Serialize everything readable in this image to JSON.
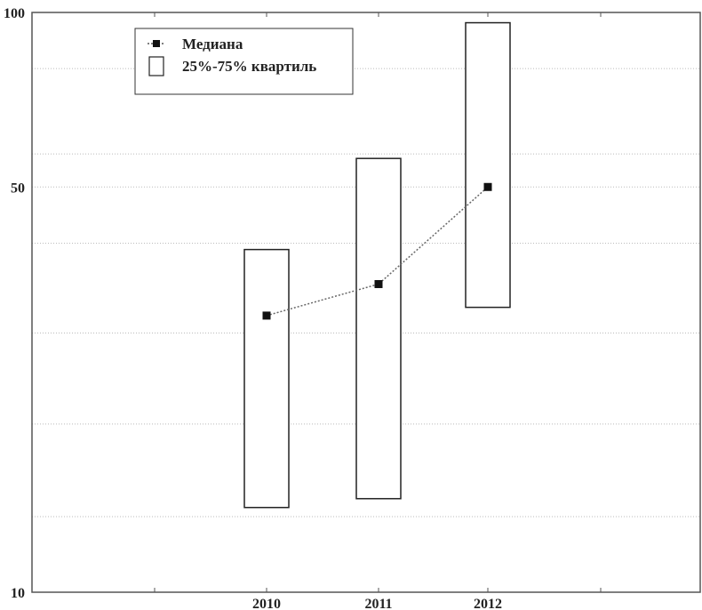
{
  "chart_data": {
    "type": "box",
    "categories": [
      "2010",
      "2011",
      "2012"
    ],
    "series": [
      {
        "name": "Медиана",
        "values": [
          30,
          34,
          50
        ]
      },
      {
        "name": "25%-75% квартиль",
        "ranges": [
          [
            14,
            39
          ],
          [
            14.5,
            56
          ],
          [
            31,
            96
          ]
        ]
      }
    ],
    "y_ticks": [
      "10",
      "50",
      "100"
    ],
    "ylim": [
      10,
      100
    ],
    "grid": "horizontal dotted",
    "legend_position": "top-left"
  }
}
